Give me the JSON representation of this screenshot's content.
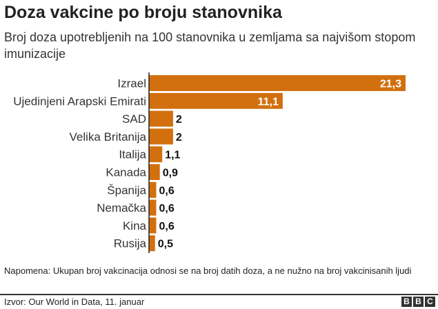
{
  "chart_data": {
    "type": "bar",
    "orientation": "horizontal",
    "title": "Doza vakcine po broju stanovnika",
    "subtitle": "Broj doza upotrebljenih na 100 stanovnika u zemljama sa najvišom stopom imunizacije",
    "categories": [
      "Izrael",
      "Ujedinjeni Arapski Emirati",
      "SAD",
      "Velika Britanija",
      "Italija",
      "Kanada",
      "Španija",
      "Nemačka",
      "Kina",
      "Rusija"
    ],
    "values": [
      21.3,
      11.1,
      2,
      2,
      1.1,
      0.9,
      0.6,
      0.6,
      0.6,
      0.5
    ],
    "labels": [
      "21,3",
      "11,1",
      "2",
      "2",
      "1,1",
      "0,9",
      "0,6",
      "0,6",
      "0,6",
      "0,5"
    ],
    "bar_color": "#d2700f",
    "grid": false
  },
  "note": "Napomena: Ukupan broj vakcinacija odnosi se na broj datih doza, a ne nužno na broj vakcinisanih ljudi",
  "source": "Izvor: Our World in Data, 11. januar",
  "logo": [
    "B",
    "B",
    "C"
  ]
}
